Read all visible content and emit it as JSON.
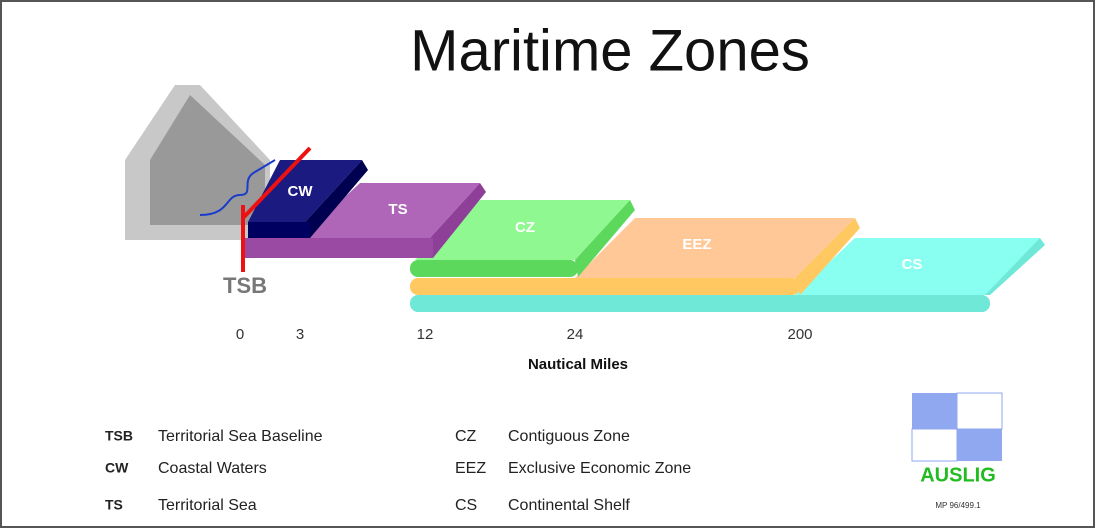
{
  "title": "Maritime Zones",
  "zones": [
    {
      "abbr": "CW"
    },
    {
      "abbr": "TS"
    },
    {
      "abbr": "CZ"
    },
    {
      "abbr": "EEZ"
    },
    {
      "abbr": "CS"
    }
  ],
  "baseline_label": "TSB",
  "scale": {
    "marks": [
      "0",
      "3",
      "12",
      "24",
      "200"
    ],
    "title": "Nautical Miles"
  },
  "legend": [
    {
      "abbr": "TSB",
      "text": "Territorial Sea Baseline"
    },
    {
      "abbr": "CW",
      "text": "Coastal Waters"
    },
    {
      "abbr": "TS",
      "text": "Territorial Sea"
    },
    {
      "abbr": "CZ",
      "text": "Contiguous Zone"
    },
    {
      "abbr": "EEZ",
      "text": "Exclusive Economic Zone"
    },
    {
      "abbr": "CS",
      "text": "Continental Shelf"
    }
  ],
  "logo": {
    "text": "AUSLIG",
    "code": "MP 96/499.1"
  }
}
